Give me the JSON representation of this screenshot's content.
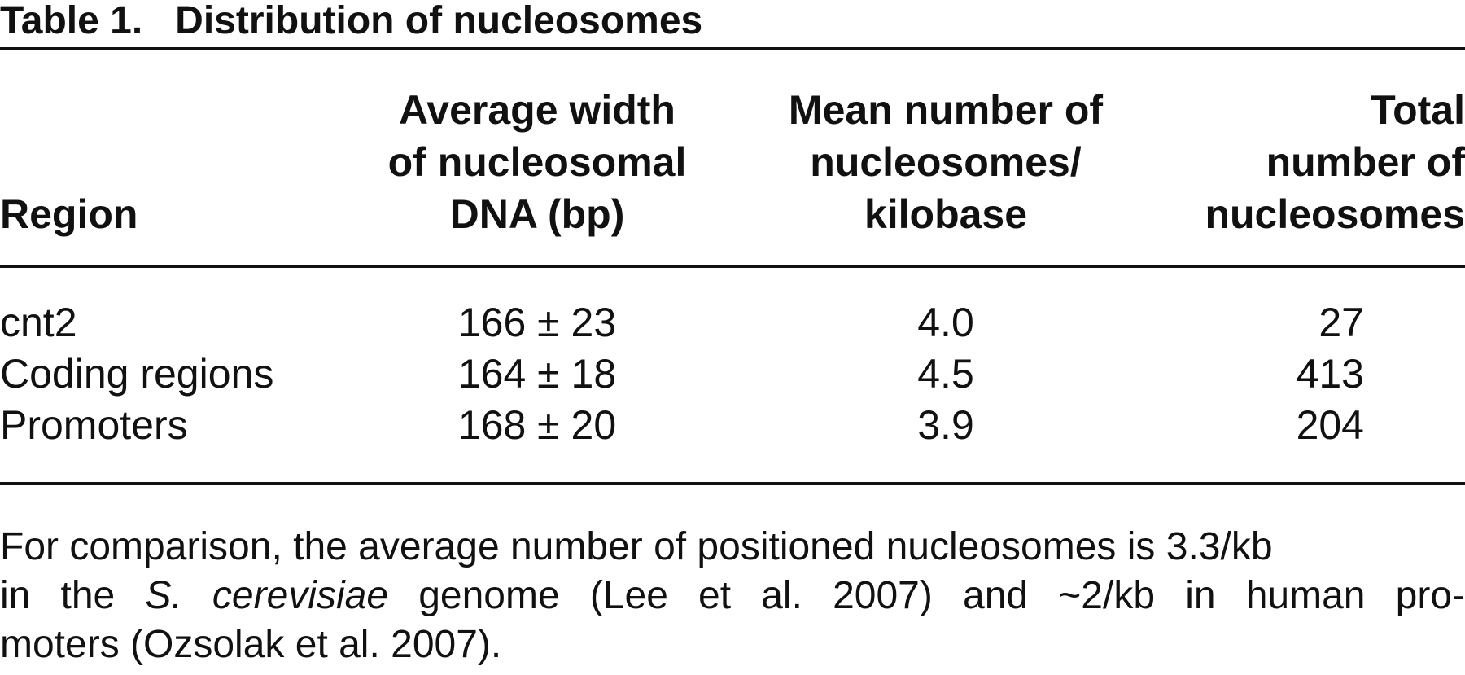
{
  "title": {
    "label": "Table 1.",
    "text": "Distribution of nucleosomes"
  },
  "table": {
    "headers": [
      [
        "Region"
      ],
      [
        "Average width",
        "of nucleosomal",
        "DNA (bp)"
      ],
      [
        "Mean number of",
        "nucleosomes/",
        "kilobase"
      ],
      [
        "Total",
        "number of",
        "nucleosomes"
      ]
    ],
    "rows": [
      [
        "cnt2",
        "166 ± 23",
        "4.0",
        "27"
      ],
      [
        "Coding regions",
        "164 ± 18",
        "4.5",
        "413"
      ],
      [
        "Promoters",
        "168 ± 20",
        "3.9",
        "204"
      ]
    ]
  },
  "footnote": {
    "line1": "For comparison, the average number of positioned nucleosomes is 3.3/kb",
    "line2": {
      "before": "in the ",
      "italic": "S. cerevisiae",
      "after": " genome (Lee et al. 2007) and ~2/kb in human pro-"
    },
    "line3": "moters (Ozsolak et al. 2007)."
  }
}
